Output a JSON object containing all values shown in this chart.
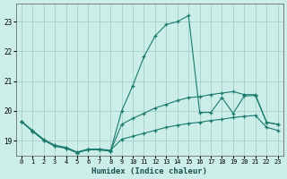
{
  "xlabel": "Humidex (Indice chaleur)",
  "background_color": "#cceee8",
  "line_color": "#1a7a6e",
  "grid_color": "#aad4ce",
  "xlim": [
    -0.5,
    23.5
  ],
  "ylim": [
    18.5,
    23.6
  ],
  "yticks": [
    19,
    20,
    21,
    22,
    23
  ],
  "xticks": [
    0,
    1,
    2,
    3,
    4,
    5,
    6,
    7,
    8,
    9,
    10,
    11,
    12,
    13,
    14,
    15,
    16,
    17,
    18,
    19,
    20,
    21,
    22,
    23
  ],
  "series": [
    {
      "x": [
        0,
        1,
        2,
        3,
        4,
        5,
        6,
        7,
        8,
        9,
        10,
        11,
        12,
        13,
        14,
        15,
        16,
        17,
        18,
        19,
        20,
        21,
        22,
        23
      ],
      "y": [
        19.65,
        19.35,
        19.05,
        18.85,
        18.78,
        18.62,
        18.72,
        18.72,
        18.68,
        19.05,
        19.15,
        19.25,
        19.35,
        19.45,
        19.52,
        19.58,
        19.62,
        19.68,
        19.72,
        19.78,
        19.82,
        19.85,
        19.45,
        19.35
      ]
    },
    {
      "x": [
        0,
        1,
        2,
        3,
        4,
        5,
        6,
        7,
        8,
        9,
        10,
        11,
        12,
        13,
        14,
        15,
        16,
        17,
        18,
        19,
        20,
        21,
        22,
        23
      ],
      "y": [
        19.65,
        19.32,
        19.02,
        18.82,
        18.75,
        18.6,
        18.7,
        18.7,
        18.65,
        19.55,
        19.75,
        19.92,
        20.1,
        20.22,
        20.35,
        20.45,
        20.48,
        20.55,
        20.6,
        20.65,
        20.55,
        20.55,
        19.62,
        19.55
      ]
    },
    {
      "x": [
        0,
        1,
        2,
        3,
        4,
        5,
        6,
        7,
        8,
        9,
        10,
        11,
        12,
        13,
        14,
        15,
        16,
        17,
        18,
        19,
        20,
        21,
        22,
        23
      ],
      "y": [
        19.65,
        19.32,
        19.02,
        18.82,
        18.75,
        18.6,
        18.7,
        18.7,
        18.65,
        20.0,
        20.85,
        21.82,
        22.52,
        22.9,
        23.0,
        23.2,
        19.95,
        19.95,
        20.45,
        19.92,
        20.5,
        20.52,
        19.62,
        19.55
      ]
    }
  ]
}
